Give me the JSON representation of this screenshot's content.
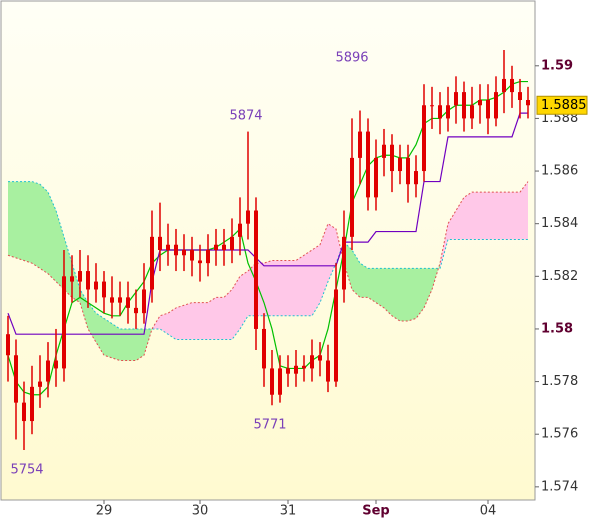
{
  "chart_data": {
    "type": "candlestick",
    "categories": [
      null,
      null,
      null,
      null,
      null,
      null,
      null,
      null,
      null,
      null,
      null,
      null,
      "29",
      null,
      null,
      null,
      null,
      null,
      null,
      null,
      null,
      null,
      null,
      null,
      "30",
      null,
      null,
      null,
      null,
      null,
      null,
      null,
      null,
      null,
      null,
      "31",
      null,
      null,
      null,
      null,
      null,
      null,
      null,
      null,
      null,
      null,
      "Sep",
      null,
      null,
      null,
      null,
      null,
      null,
      null,
      null,
      null,
      null,
      null,
      null,
      null,
      "04",
      null,
      null,
      null,
      null,
      null
    ],
    "open": [
      1.5798,
      1.579,
      1.5772,
      1.5765,
      1.5778,
      1.578,
      1.5788,
      1.5785,
      1.582,
      1.5818,
      1.5822,
      1.5815,
      1.5818,
      1.5812,
      1.581,
      1.5812,
      1.5808,
      1.5806,
      1.5815,
      1.5835,
      1.583,
      1.5832,
      1.5828,
      1.583,
      1.5826,
      1.5825,
      1.583,
      1.5832,
      1.583,
      1.5835,
      1.584,
      1.5845,
      1.58,
      1.5785,
      1.5775,
      1.5785,
      1.5783,
      1.5786,
      1.5785,
      1.579,
      1.5788,
      1.578,
      1.5815,
      1.5835,
      1.5865,
      1.5875,
      1.585,
      1.5865,
      1.587,
      1.586,
      1.5865,
      1.5855,
      1.586,
      1.5885,
      1.5885,
      1.588,
      1.5885,
      1.589,
      1.588,
      1.5885,
      1.5887,
      1.588,
      1.589,
      1.5895,
      1.589,
      1.5887
    ],
    "high": [
      1.5805,
      1.5796,
      1.578,
      1.5786,
      1.579,
      1.5795,
      1.58,
      1.583,
      1.5828,
      1.583,
      1.5828,
      1.5825,
      1.5822,
      1.582,
      1.5818,
      1.5818,
      1.5815,
      1.5825,
      1.5845,
      1.5848,
      1.584,
      1.5838,
      1.5836,
      1.5835,
      1.5832,
      1.5836,
      1.5838,
      1.5838,
      1.5842,
      1.585,
      1.5875,
      1.585,
      1.5806,
      1.5792,
      1.579,
      1.579,
      1.5792,
      1.579,
      1.5796,
      1.5795,
      1.5794,
      1.5825,
      1.5845,
      1.588,
      1.5883,
      1.588,
      1.5872,
      1.5876,
      1.5874,
      1.587,
      1.587,
      1.5866,
      1.5893,
      1.5892,
      1.589,
      1.5892,
      1.5896,
      1.5894,
      1.5892,
      1.5893,
      1.5893,
      1.5896,
      1.5906,
      1.59,
      1.5895,
      1.5892
    ],
    "low": [
      1.578,
      1.5758,
      1.5754,
      1.576,
      1.577,
      1.5774,
      1.5778,
      1.578,
      1.581,
      1.5812,
      1.5808,
      1.581,
      1.5806,
      1.5804,
      1.5805,
      1.5802,
      1.58,
      1.5802,
      1.581,
      1.5822,
      1.5824,
      1.5822,
      1.5822,
      1.582,
      1.5818,
      1.582,
      1.5824,
      1.5824,
      1.5825,
      1.5828,
      1.5834,
      1.5792,
      1.5778,
      1.5771,
      1.5772,
      1.5778,
      1.5778,
      1.578,
      1.578,
      1.5782,
      1.5776,
      1.5778,
      1.581,
      1.583,
      1.5855,
      1.5845,
      1.5845,
      1.5858,
      1.5852,
      1.5855,
      1.5848,
      1.585,
      1.5856,
      1.5876,
      1.5874,
      1.5875,
      1.5878,
      1.5875,
      1.5876,
      1.5878,
      1.5874,
      1.5877,
      1.5882,
      1.5884,
      1.588,
      1.588
    ],
    "close": [
      1.579,
      1.5772,
      1.5765,
      1.5778,
      1.578,
      1.5788,
      1.5785,
      1.582,
      1.5818,
      1.5822,
      1.5815,
      1.5818,
      1.5812,
      1.581,
      1.5812,
      1.5808,
      1.5806,
      1.5815,
      1.5835,
      1.583,
      1.5832,
      1.5828,
      1.583,
      1.5826,
      1.5825,
      1.583,
      1.5832,
      1.583,
      1.5835,
      1.584,
      1.5845,
      1.58,
      1.5785,
      1.5775,
      1.5785,
      1.5783,
      1.5786,
      1.5785,
      1.579,
      1.5788,
      1.578,
      1.5815,
      1.5835,
      1.5865,
      1.5875,
      1.585,
      1.5865,
      1.587,
      1.586,
      1.5865,
      1.5855,
      1.586,
      1.5885,
      1.5885,
      1.588,
      1.5885,
      1.589,
      1.588,
      1.5885,
      1.5887,
      1.588,
      1.589,
      1.5895,
      1.589,
      1.5887,
      1.5885
    ],
    "candle_color": "#e00000",
    "lines": [
      {
        "color": "#00c000",
        "values": [
          1.579,
          1.578,
          1.5776,
          1.5775,
          1.5775,
          1.5778,
          1.579,
          1.58,
          1.581,
          1.5812,
          1.581,
          1.5808,
          1.5806,
          1.5805,
          1.5805,
          1.581,
          1.5814,
          1.5818,
          1.5825,
          1.5828,
          1.583,
          1.583,
          1.583,
          1.583,
          1.583,
          1.583,
          1.5831,
          1.5833,
          1.5835,
          1.5838,
          1.5825,
          1.5818,
          1.581,
          1.58,
          1.5786,
          1.5785,
          1.5785,
          1.5785,
          1.5788,
          1.579,
          1.58,
          1.5815,
          1.583,
          1.5848,
          1.5855,
          1.5862,
          1.5865,
          1.5866,
          1.5866,
          1.5865,
          1.5865,
          1.587,
          1.5878,
          1.588,
          1.588,
          1.5883,
          1.5885,
          1.5885,
          1.5885,
          1.5887,
          1.5887,
          1.5888,
          1.589,
          1.5893,
          1.5894,
          1.5894
        ]
      },
      {
        "color": "#7000c0",
        "values": [
          1.5806,
          1.5798,
          1.5798,
          1.5798,
          1.5798,
          1.5798,
          1.5798,
          1.5798,
          1.5798,
          1.5798,
          1.5798,
          1.5798,
          1.5798,
          1.5798,
          1.5798,
          1.5798,
          1.5798,
          1.5798,
          1.5818,
          1.583,
          1.583,
          1.583,
          1.583,
          1.583,
          1.583,
          1.583,
          1.583,
          1.583,
          1.583,
          1.583,
          1.583,
          1.5827,
          1.5824,
          1.5824,
          1.5824,
          1.5824,
          1.5824,
          1.5824,
          1.5824,
          1.5824,
          1.5824,
          1.5824,
          1.5833,
          1.5833,
          1.5833,
          1.5833,
          1.5837,
          1.5837,
          1.5837,
          1.5837,
          1.5837,
          1.5837,
          1.5856,
          1.5856,
          1.5856,
          1.5873,
          1.5873,
          1.5873,
          1.5873,
          1.5873,
          1.5873,
          1.5873,
          1.5873,
          1.5873,
          1.5882,
          1.5882
        ]
      }
    ],
    "cloud": {
      "span_a": {
        "color": "#20c0d0",
        "values": [
          1.5856,
          1.5856,
          1.5856,
          1.5856,
          1.5855,
          1.5852,
          1.5845,
          1.5835,
          1.5825,
          1.5815,
          1.581,
          1.5806,
          1.5804,
          1.5802,
          1.58,
          1.58,
          1.58,
          1.58,
          1.58,
          1.58,
          1.5798,
          1.5796,
          1.5796,
          1.5796,
          1.5796,
          1.5796,
          1.5796,
          1.5796,
          1.5796,
          1.58,
          1.5805,
          1.5805,
          1.5805,
          1.5805,
          1.5805,
          1.5805,
          1.5805,
          1.5805,
          1.5805,
          1.581,
          1.5818,
          1.5825,
          1.5833,
          1.583,
          1.5825,
          1.5823,
          1.5823,
          1.5823,
          1.5823,
          1.5823,
          1.5823,
          1.5823,
          1.5823,
          1.5823,
          1.5823,
          1.5834,
          1.5834,
          1.5834,
          1.5834,
          1.5834,
          1.5834,
          1.5834,
          1.5834,
          1.5834,
          1.5834,
          1.5834
        ]
      },
      "span_b": {
        "color": "#e05050",
        "values": [
          1.5828,
          1.5827,
          1.5826,
          1.5825,
          1.5823,
          1.5821,
          1.5818,
          1.5815,
          1.5812,
          1.581,
          1.58,
          1.5795,
          1.579,
          1.5789,
          1.5788,
          1.5788,
          1.5788,
          1.579,
          1.58,
          1.5805,
          1.5806,
          1.5808,
          1.5809,
          1.581,
          1.581,
          1.581,
          1.5812,
          1.5812,
          1.5815,
          1.582,
          1.5822,
          1.5825,
          1.5825,
          1.5826,
          1.5826,
          1.5826,
          1.5826,
          1.5828,
          1.583,
          1.5832,
          1.584,
          1.5838,
          1.5825,
          1.5815,
          1.5812,
          1.5812,
          1.581,
          1.5808,
          1.5805,
          1.5803,
          1.5803,
          1.5804,
          1.5808,
          1.5815,
          1.5825,
          1.584,
          1.5845,
          1.585,
          1.5852,
          1.5852,
          1.5852,
          1.5852,
          1.5852,
          1.5852,
          1.5852,
          1.5856
        ]
      },
      "fill_up": "#a8f0a0",
      "fill_down": "#ffc8e8"
    },
    "last_price": 1.5885,
    "annotations": [
      "5754",
      "5771",
      "5874",
      "5896"
    ],
    "annotation_color": "#7a40b8",
    "ylim": [
      1.5735,
      1.5925
    ],
    "yticks": [
      1.574,
      1.576,
      1.578,
      1.58,
      1.582,
      1.584,
      1.586,
      1.588,
      1.59
    ]
  }
}
